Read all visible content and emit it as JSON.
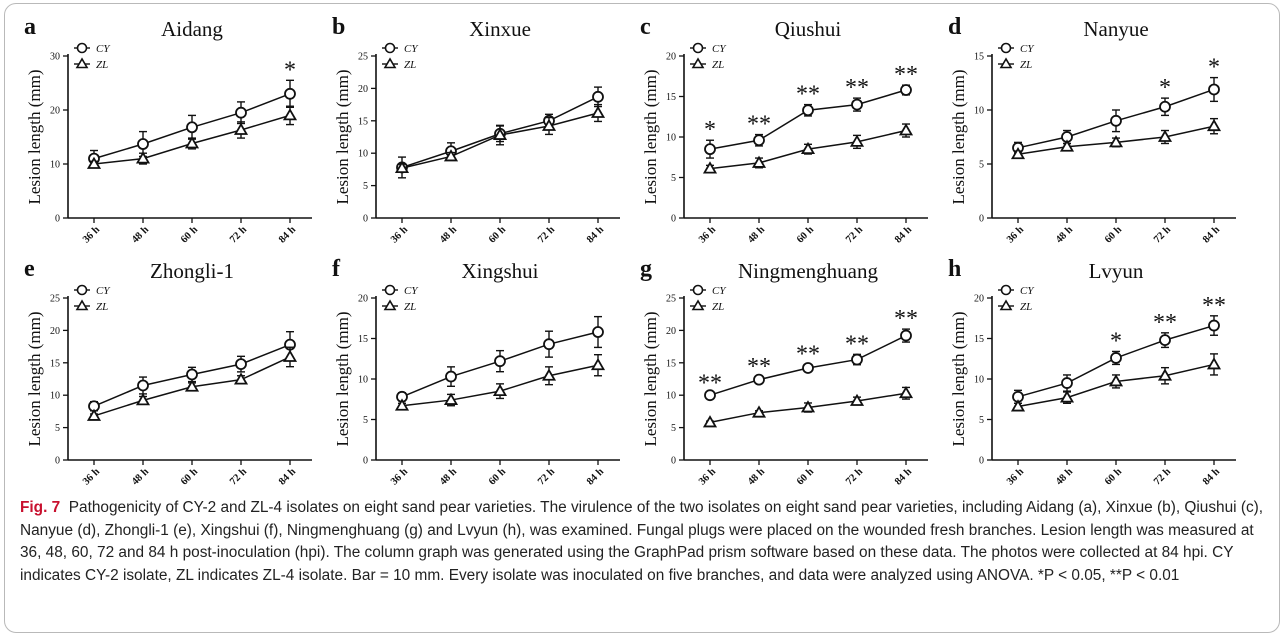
{
  "figure": {
    "label": "Fig. 7",
    "caption": "Pathogenicity of CY-2 and ZL-4 isolates on eight sand pear varieties. The virulence of the two isolates on eight sand pear varieties, including Aidang (a), Xinxue (b), Qiushui (c), Nanyue (d), Zhongli-1 (e), Xingshui (f), Ningmenghuang (g) and Lvyun (h), was examined. Fungal plugs were placed on the wounded fresh branches. Lesion length was measured at 36, 48, 60, 72 and 84 h post-inoculation (hpi). The column graph was generated using the GraphPad prism software based on these data. The photos were collected at 84 hpi. CY indicates CY-2 isolate, ZL indicates ZL-4 isolate. Bar = 10 mm. Every isolate was inoculated on five branches, and data were analyzed using ANOVA. *P < 0.05, **P < 0.01"
  },
  "chart_data": [
    {
      "panel": "a",
      "type": "line",
      "title": "Aidang",
      "ylabel": "Lesion length (mm)",
      "categories": [
        "36 h",
        "48 h",
        "60 h",
        "72 h",
        "84 h"
      ],
      "ylim": [
        0,
        30
      ],
      "yticks": [
        0,
        10,
        20,
        30
      ],
      "series": [
        {
          "name": "CY",
          "marker": "circle",
          "values": [
            11,
            13.7,
            16.8,
            19.5,
            23
          ],
          "errors": [
            1.5,
            2.3,
            2.2,
            2,
            2.5
          ]
        },
        {
          "name": "ZL",
          "marker": "triangle",
          "values": [
            10,
            11,
            13.8,
            16.3,
            19
          ],
          "errors": [
            0.5,
            1,
            1,
            1.5,
            1.7
          ]
        }
      ],
      "significance": [
        "",
        "",
        "",
        "",
        "*"
      ]
    },
    {
      "panel": "b",
      "type": "line",
      "title": "Xinxue",
      "ylabel": "Lesion length (mm)",
      "categories": [
        "36 h",
        "48 h",
        "60 h",
        "72 h",
        "84 h"
      ],
      "ylim": [
        0,
        25
      ],
      "yticks": [
        0,
        5,
        10,
        15,
        20,
        25
      ],
      "series": [
        {
          "name": "CY",
          "marker": "circle",
          "values": [
            7.8,
            10.3,
            13,
            15,
            18.7
          ],
          "errors": [
            1.6,
            1.3,
            1.2,
            1,
            1.5
          ]
        },
        {
          "name": "ZL",
          "marker": "triangle",
          "values": [
            7.7,
            9.5,
            12.8,
            14.2,
            16.2
          ],
          "errors": [
            0.6,
            0.6,
            1.5,
            1.3,
            1.3
          ]
        }
      ],
      "significance": [
        "",
        "",
        "",
        "",
        ""
      ]
    },
    {
      "panel": "c",
      "type": "line",
      "title": "Qiushui",
      "ylabel": "Lesion length (mm)",
      "categories": [
        "36 h",
        "48 h",
        "60 h",
        "72 h",
        "84 h"
      ],
      "ylim": [
        0,
        20
      ],
      "yticks": [
        0,
        5,
        10,
        15,
        20
      ],
      "series": [
        {
          "name": "CY",
          "marker": "circle",
          "values": [
            8.5,
            9.6,
            13.3,
            14,
            15.8
          ],
          "errors": [
            1.1,
            0.7,
            0.7,
            0.8,
            0.6
          ]
        },
        {
          "name": "ZL",
          "marker": "triangle",
          "values": [
            6.1,
            6.8,
            8.5,
            9.4,
            10.8
          ],
          "errors": [
            0.4,
            0.6,
            0.6,
            0.8,
            0.8
          ]
        }
      ],
      "significance": [
        "*",
        "**",
        "**",
        "**",
        "**"
      ]
    },
    {
      "panel": "d",
      "type": "line",
      "title": "Nanyue",
      "ylabel": "Lesion length (mm)",
      "categories": [
        "36 h",
        "48 h",
        "60 h",
        "72 h",
        "84 h"
      ],
      "ylim": [
        0,
        15
      ],
      "yticks": [
        0,
        5,
        10,
        15
      ],
      "series": [
        {
          "name": "CY",
          "marker": "circle",
          "values": [
            6.5,
            7.5,
            9,
            10.3,
            11.9
          ],
          "errors": [
            0.5,
            0.6,
            1,
            0.8,
            1.1
          ]
        },
        {
          "name": "ZL",
          "marker": "triangle",
          "values": [
            5.9,
            6.6,
            7,
            7.5,
            8.5
          ],
          "errors": [
            0.3,
            0.3,
            0.4,
            0.6,
            0.7
          ]
        }
      ],
      "significance": [
        "",
        "",
        "",
        "*",
        "*"
      ]
    },
    {
      "panel": "e",
      "type": "line",
      "title": "Zhongli-1",
      "ylabel": "Lesion length (mm)",
      "categories": [
        "36 h",
        "48 h",
        "60 h",
        "72 h",
        "84 h"
      ],
      "ylim": [
        0,
        25
      ],
      "yticks": [
        0,
        5,
        10,
        15,
        20,
        25
      ],
      "series": [
        {
          "name": "CY",
          "marker": "circle",
          "values": [
            8.3,
            11.5,
            13.2,
            14.8,
            17.8
          ],
          "errors": [
            0.7,
            1.3,
            1.1,
            1.2,
            2
          ]
        },
        {
          "name": "ZL",
          "marker": "triangle",
          "values": [
            6.8,
            9.2,
            11.3,
            12.4,
            15.9
          ],
          "errors": [
            0.3,
            0.6,
            0.6,
            0.6,
            1.5
          ]
        }
      ],
      "significance": [
        "",
        "",
        "",
        "",
        ""
      ]
    },
    {
      "panel": "f",
      "type": "line",
      "title": "Xingshui",
      "ylabel": "Lesion length (mm)",
      "categories": [
        "36 h",
        "48 h",
        "60 h",
        "72 h",
        "84 h"
      ],
      "ylim": [
        0,
        20
      ],
      "yticks": [
        0,
        5,
        10,
        15,
        20
      ],
      "series": [
        {
          "name": "CY",
          "marker": "circle",
          "values": [
            7.8,
            10.3,
            12.2,
            14.3,
            15.8
          ],
          "errors": [
            0.5,
            1.2,
            1.3,
            1.6,
            1.9
          ]
        },
        {
          "name": "ZL",
          "marker": "triangle",
          "values": [
            6.7,
            7.4,
            8.5,
            10.4,
            11.7
          ],
          "errors": [
            0.3,
            0.7,
            0.9,
            1.1,
            1.3
          ]
        }
      ],
      "significance": [
        "",
        "",
        "",
        "",
        ""
      ]
    },
    {
      "panel": "g",
      "type": "line",
      "title": "Ningmenghuang",
      "ylabel": "Lesion length (mm)",
      "categories": [
        "36 h",
        "48 h",
        "60 h",
        "72 h",
        "84 h"
      ],
      "ylim": [
        0,
        25
      ],
      "yticks": [
        0,
        5,
        10,
        15,
        20,
        25
      ],
      "series": [
        {
          "name": "CY",
          "marker": "circle",
          "values": [
            10,
            12.4,
            14.2,
            15.5,
            19.2
          ],
          "errors": [
            0.3,
            0.4,
            0.5,
            0.8,
            1
          ]
        },
        {
          "name": "ZL",
          "marker": "triangle",
          "values": [
            5.8,
            7.3,
            8.1,
            9.1,
            10.3
          ],
          "errors": [
            0.2,
            0.3,
            0.7,
            0.6,
            0.9
          ]
        }
      ],
      "significance": [
        "**",
        "**",
        "**",
        "**",
        "**"
      ]
    },
    {
      "panel": "h",
      "type": "line",
      "title": "Lvyun",
      "ylabel": "Lesion length (mm)",
      "categories": [
        "36 h",
        "48 h",
        "60 h",
        "72 h",
        "84 h"
      ],
      "ylim": [
        0,
        20
      ],
      "yticks": [
        0,
        5,
        10,
        15,
        20
      ],
      "series": [
        {
          "name": "CY",
          "marker": "circle",
          "values": [
            7.8,
            9.5,
            12.6,
            14.8,
            16.6
          ],
          "errors": [
            0.8,
            1,
            0.8,
            0.9,
            1.2
          ]
        },
        {
          "name": "ZL",
          "marker": "triangle",
          "values": [
            6.6,
            7.7,
            9.7,
            10.4,
            11.8
          ],
          "errors": [
            0.4,
            0.7,
            0.8,
            1,
            1.3
          ]
        }
      ],
      "significance": [
        "",
        "",
        "*",
        "**",
        "**"
      ]
    }
  ]
}
